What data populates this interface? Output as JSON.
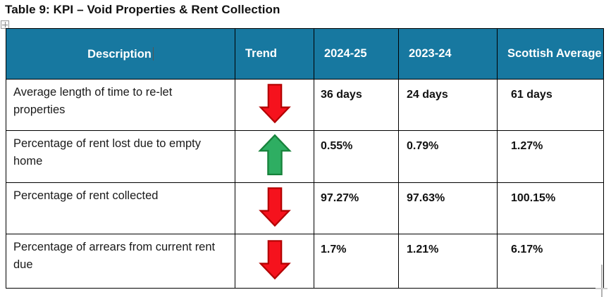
{
  "title": "Table 9: KPI – Void Properties & Rent Collection",
  "table": {
    "headers": [
      "Description",
      "Trend",
      "2024-25",
      "2023-24",
      "Scottish Average"
    ],
    "rows": [
      {
        "description": "Average length of time to re-let properties",
        "trend": "down",
        "y2024_25": "36 days",
        "y2023_24": "24 days",
        "scottish_average": "61 days"
      },
      {
        "description": "Percentage of rent lost due to empty home",
        "trend": "up",
        "y2024_25": "0.55%",
        "y2023_24": "0.79%",
        "scottish_average": "1.27%"
      },
      {
        "description": "Percentage of rent collected",
        "trend": "down",
        "y2024_25": "97.27%",
        "y2023_24": "97.63%",
        "scottish_average": "100.15%"
      },
      {
        "description": "Percentage of arrears from current rent due",
        "trend": "down",
        "y2024_25": "1.7%",
        "y2023_24": "1.21%",
        "scottish_average": "6.17%"
      }
    ]
  },
  "colors": {
    "header_bg": "#1778A0",
    "header_text": "#FFFFFF",
    "border": "#000000",
    "arrow_up_fill": "#2EAE62",
    "arrow_up_stroke": "#17823B",
    "arrow_down_fill": "#F5121D",
    "arrow_down_stroke": "#B30000"
  },
  "icons": {
    "table_move_handle": "move-cross-icon",
    "trend_up": "up-block-arrow",
    "trend_down": "down-block-arrow"
  }
}
